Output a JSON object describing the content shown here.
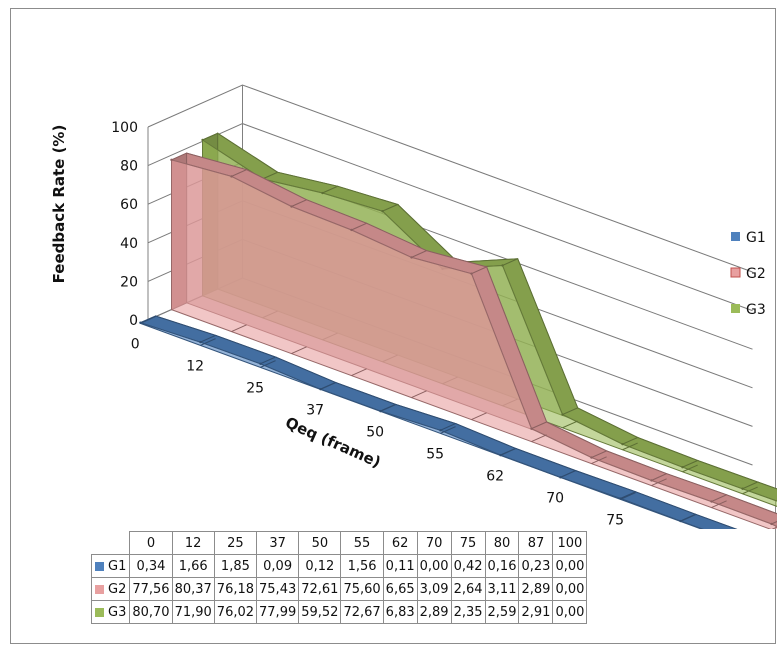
{
  "chart_data": {
    "type": "area",
    "variant": "3d-area",
    "xlabel": "Qeq (frame)",
    "ylabel": "Feedback Rate (%)",
    "ylim": [
      0,
      100
    ],
    "y_ticks": [
      "0",
      "20",
      "40",
      "60",
      "80",
      "100"
    ],
    "grid": true,
    "legend_position": "right",
    "categories": [
      "0",
      "12",
      "25",
      "37",
      "50",
      "55",
      "62",
      "70",
      "75",
      "80",
      "87",
      "100"
    ],
    "series": [
      {
        "name": "G1",
        "color": "#4f81bd",
        "values": [
          0.34,
          1.66,
          1.85,
          0.09,
          0.12,
          1.56,
          0.11,
          0.0,
          0.42,
          0.16,
          0.23,
          0.0
        ],
        "labels": [
          "0,34",
          "1,66",
          "1,85",
          "0,09",
          "0,12",
          "1,56",
          "0,11",
          "0,00",
          "0,42",
          "0,16",
          "0,23",
          "0,00"
        ]
      },
      {
        "name": "G2",
        "color": "#e8a0a0",
        "values": [
          77.56,
          80.37,
          76.18,
          75.43,
          72.61,
          75.6,
          6.65,
          3.09,
          2.64,
          3.11,
          2.89,
          0.0
        ],
        "labels": [
          "77,56",
          "80,37",
          "76,18",
          "75,43",
          "72,61",
          "75,60",
          "6,65",
          "3,09",
          "2,64",
          "3,11",
          "2,89",
          "0,00"
        ]
      },
      {
        "name": "G3",
        "color": "#9bbb59",
        "values": [
          80.7,
          71.9,
          76.02,
          77.99,
          59.52,
          72.67,
          6.83,
          2.89,
          2.35,
          2.59,
          2.91,
          0.0
        ],
        "labels": [
          "80,70",
          "71,90",
          "76,02",
          "77,99",
          "59,52",
          "72,67",
          "6,83",
          "2,89",
          "2,35",
          "2,59",
          "2,91",
          "0,00"
        ]
      }
    ]
  }
}
